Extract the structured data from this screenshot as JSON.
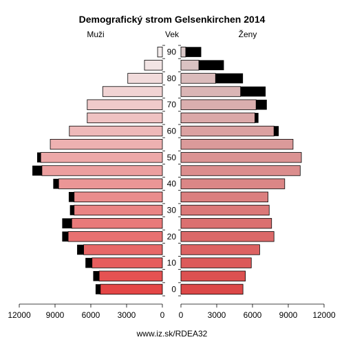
{
  "chart_data": {
    "type": "bar",
    "title": "Demografický strom Gelsenkirchen 2014",
    "left_label": "Muži",
    "center_label": "Vek",
    "right_label": "Ženy",
    "footer": "www.iz.sk/RDEA32",
    "x_ticks_left": [
      "12000",
      "9000",
      "6000",
      "3000",
      "0"
    ],
    "x_ticks_right": [
      "0",
      "3000",
      "6000",
      "9000",
      "12000"
    ],
    "xlim": [
      0,
      12000
    ],
    "age_ticks": [
      "0",
      "10",
      "20",
      "30",
      "40",
      "50",
      "60",
      "70",
      "80",
      "90"
    ],
    "age_groups": [
      "0-4",
      "5-9",
      "10-14",
      "15-19",
      "20-24",
      "25-29",
      "30-34",
      "35-39",
      "40-44",
      "45-49",
      "50-54",
      "55-59",
      "60-64",
      "65-69",
      "70-74",
      "75-79",
      "80-84",
      "85-89",
      "90+"
    ],
    "males": [
      5200,
      5300,
      5900,
      6600,
      7900,
      7600,
      7400,
      7400,
      8700,
      10100,
      10200,
      9400,
      7800,
      6300,
      6300,
      5000,
      2900,
      1500,
      400
    ],
    "males_surplus": [
      400,
      500,
      550,
      550,
      500,
      800,
      350,
      450,
      450,
      800,
      300,
      0,
      0,
      0,
      0,
      0,
      0,
      0,
      0
    ],
    "females": [
      5200,
      5400,
      5900,
      6600,
      7800,
      7600,
      7400,
      7300,
      8700,
      10000,
      10100,
      9400,
      7800,
      6200,
      6300,
      5000,
      2900,
      1500,
      400
    ],
    "females_surplus": [
      0,
      0,
      0,
      0,
      0,
      0,
      0,
      0,
      0,
      0,
      0,
      0,
      400,
      300,
      900,
      2100,
      2300,
      2100,
      1300
    ]
  }
}
